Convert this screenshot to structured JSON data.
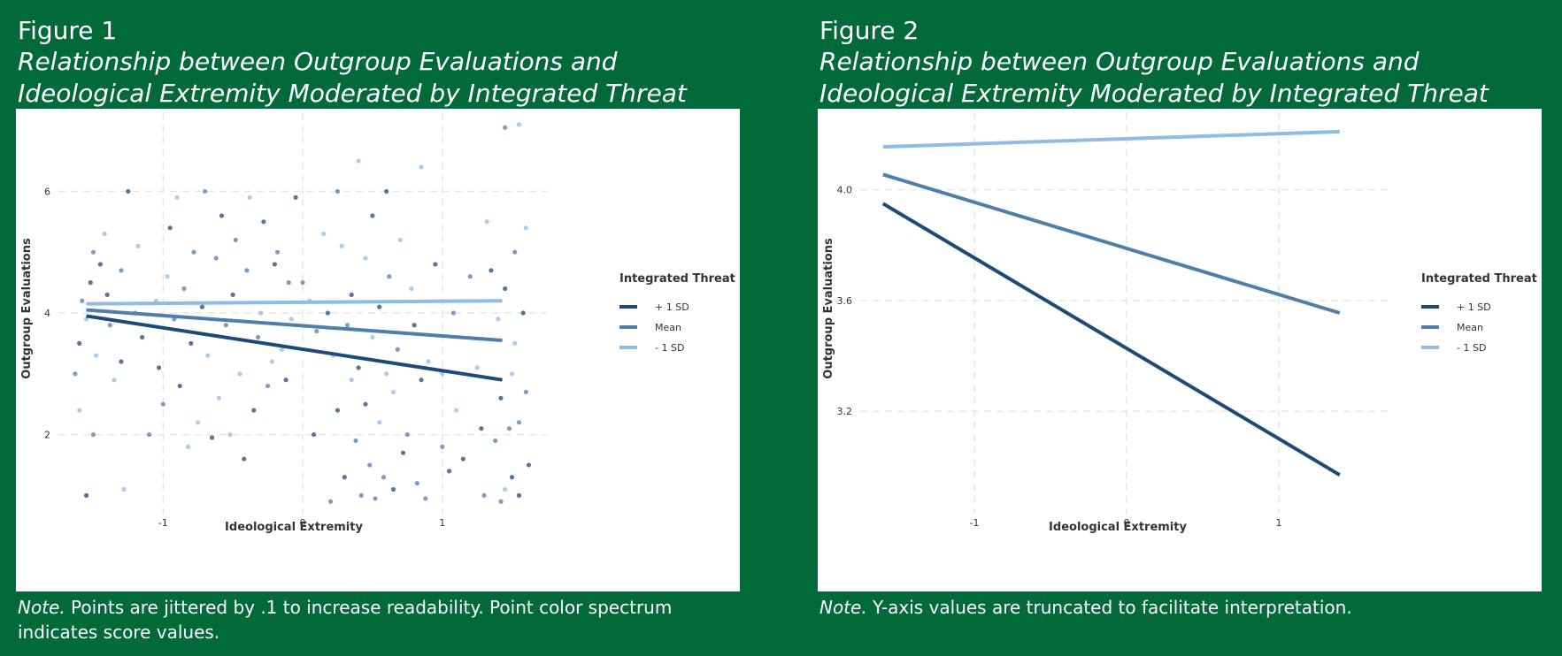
{
  "figures": [
    {
      "label": "Figure 1",
      "title_line1": "Relationship between Outgroup Evaluations and",
      "title_line2": "Ideological Extremity Moderated by Integrated Threat",
      "note_label": "Note.",
      "note_text": " Points are jittered by .1 to increase readability. Point color spectrum indicates score values."
    },
    {
      "label": "Figure 2",
      "title_line1": "Relationship between Outgroup Evaluations and",
      "title_line2": "Ideological Extremity Moderated by Integrated Threat",
      "note_label": "Note.",
      "note_text": " Y-axis values are truncated to facilitate interpretation."
    }
  ],
  "colors": {
    "background": "#026a3a",
    "plus_1sd": "#1c4a7a",
    "mean": "#4f7ead",
    "minus_1sd": "#8fbbe4",
    "grid": "#e6e6e6",
    "text": "#333333"
  },
  "chart_data": [
    {
      "type": "scatter",
      "xlabel": "Ideological Extremity",
      "ylabel": "Outgroup Evaluations",
      "xlim": [
        -1.75,
        1.75
      ],
      "ylim": [
        0.7,
        7.3
      ],
      "xticks": [
        -1,
        0,
        1
      ],
      "xtick_labels": [
        "-1",
        "0",
        "1"
      ],
      "yticks": [
        2,
        4,
        6
      ],
      "ytick_labels": [
        "2",
        "4",
        "6"
      ],
      "grid": true,
      "legend": {
        "title": "Integrated Threat",
        "position": "right",
        "entries": [
          "+ 1 SD",
          "Mean",
          "- 1 SD"
        ]
      },
      "series": [
        {
          "name": "+ 1 SD",
          "x": [
            -1.55,
            1.43
          ],
          "y": [
            3.95,
            2.9
          ]
        },
        {
          "name": "Mean",
          "x": [
            -1.55,
            1.43
          ],
          "y": [
            4.05,
            3.55
          ]
        },
        {
          "name": "- 1 SD",
          "x": [
            -1.55,
            1.43
          ],
          "y": [
            4.15,
            4.2
          ]
        }
      ],
      "points": [
        [
          -1.6,
          3.5
        ],
        [
          -1.58,
          4.2
        ],
        [
          -1.55,
          3.9
        ],
        [
          -1.52,
          4.5
        ],
        [
          -1.5,
          2.0
        ],
        [
          -1.48,
          3.3
        ],
        [
          -1.45,
          4.8
        ],
        [
          -1.63,
          3.0
        ],
        [
          -1.6,
          2.4
        ],
        [
          -1.55,
          1.0
        ],
        [
          -1.5,
          5.0
        ],
        [
          -1.42,
          5.3
        ],
        [
          -1.4,
          4.3
        ],
        [
          -1.38,
          3.8
        ],
        [
          -1.35,
          2.9
        ],
        [
          -1.3,
          3.2
        ],
        [
          -1.3,
          4.7
        ],
        [
          -1.28,
          1.1
        ],
        [
          -1.25,
          6.0
        ],
        [
          -1.2,
          4.0
        ],
        [
          -1.18,
          5.1
        ],
        [
          -1.15,
          3.6
        ],
        [
          -1.1,
          2.0
        ],
        [
          -1.05,
          4.2
        ],
        [
          -1.03,
          3.1
        ],
        [
          -1.0,
          2.5
        ],
        [
          -0.97,
          4.6
        ],
        [
          -0.95,
          5.4
        ],
        [
          -0.92,
          3.9
        ],
        [
          -0.9,
          5.9
        ],
        [
          -0.88,
          2.8
        ],
        [
          -0.85,
          4.4
        ],
        [
          -0.82,
          1.8
        ],
        [
          -0.8,
          3.5
        ],
        [
          -0.78,
          5.0
        ],
        [
          -0.75,
          2.2
        ],
        [
          -0.72,
          4.1
        ],
        [
          -0.7,
          6.0
        ],
        [
          -0.68,
          3.3
        ],
        [
          -0.65,
          1.95
        ],
        [
          -0.62,
          4.9
        ],
        [
          -0.6,
          2.6
        ],
        [
          -0.58,
          5.6
        ],
        [
          -0.55,
          3.8
        ],
        [
          -0.52,
          2.0
        ],
        [
          -0.5,
          4.3
        ],
        [
          -0.48,
          5.2
        ],
        [
          -0.45,
          3.0
        ],
        [
          -0.42,
          1.6
        ],
        [
          -0.4,
          4.7
        ],
        [
          -0.38,
          5.9
        ],
        [
          -0.35,
          2.4
        ],
        [
          -0.32,
          3.6
        ],
        [
          -0.3,
          4.0
        ],
        [
          -0.28,
          5.5
        ],
        [
          -0.25,
          2.8
        ],
        [
          -0.22,
          3.2
        ],
        [
          -0.2,
          4.8
        ],
        [
          -0.18,
          5.0
        ],
        [
          -0.15,
          3.4
        ],
        [
          -0.12,
          2.9
        ],
        [
          -0.1,
          4.5
        ],
        [
          -0.08,
          3.9
        ],
        [
          -0.05,
          5.9
        ],
        [
          0.0,
          4.5
        ],
        [
          0.05,
          4.2
        ],
        [
          0.08,
          2.0
        ],
        [
          0.1,
          3.7
        ],
        [
          0.15,
          5.3
        ],
        [
          0.18,
          4.0
        ],
        [
          0.2,
          0.9
        ],
        [
          0.22,
          3.3
        ],
        [
          0.25,
          2.4
        ],
        [
          0.25,
          6.0
        ],
        [
          0.28,
          5.1
        ],
        [
          0.3,
          1.3
        ],
        [
          0.32,
          3.8
        ],
        [
          0.35,
          2.9
        ],
        [
          0.35,
          4.3
        ],
        [
          0.38,
          1.9
        ],
        [
          0.4,
          6.5
        ],
        [
          0.4,
          3.1
        ],
        [
          0.42,
          1.0
        ],
        [
          0.45,
          4.9
        ],
        [
          0.45,
          2.5
        ],
        [
          0.48,
          1.5
        ],
        [
          0.5,
          3.6
        ],
        [
          0.5,
          5.6
        ],
        [
          0.52,
          0.95
        ],
        [
          0.55,
          2.2
        ],
        [
          0.55,
          4.1
        ],
        [
          0.58,
          1.3
        ],
        [
          0.6,
          3.0
        ],
        [
          0.6,
          6.0
        ],
        [
          0.62,
          4.6
        ],
        [
          0.65,
          2.7
        ],
        [
          0.65,
          1.1
        ],
        [
          0.68,
          3.4
        ],
        [
          0.7,
          5.2
        ],
        [
          0.72,
          1.7
        ],
        [
          0.75,
          2.0
        ],
        [
          0.78,
          4.4
        ],
        [
          0.8,
          3.8
        ],
        [
          0.82,
          1.2
        ],
        [
          0.85,
          6.4
        ],
        [
          0.85,
          2.9
        ],
        [
          0.88,
          0.95
        ],
        [
          0.9,
          3.2
        ],
        [
          0.95,
          4.8
        ],
        [
          1.0,
          1.8
        ],
        [
          1.0,
          3.0
        ],
        [
          1.05,
          1.4
        ],
        [
          1.08,
          4.0
        ],
        [
          1.1,
          2.4
        ],
        [
          1.15,
          1.6
        ],
        [
          1.2,
          4.6
        ],
        [
          1.25,
          3.1
        ],
        [
          1.28,
          2.1
        ],
        [
          1.3,
          1.0
        ],
        [
          1.32,
          5.5
        ],
        [
          1.35,
          4.7
        ],
        [
          1.38,
          1.9
        ],
        [
          1.4,
          3.9
        ],
        [
          1.42,
          2.6
        ],
        [
          1.42,
          0.9
        ],
        [
          1.45,
          1.1
        ],
        [
          1.45,
          4.4
        ],
        [
          1.48,
          2.1
        ],
        [
          1.5,
          3.0
        ],
        [
          1.5,
          1.3
        ],
        [
          1.52,
          5.0
        ],
        [
          1.52,
          3.5
        ],
        [
          1.55,
          1.0
        ],
        [
          1.55,
          2.2
        ],
        [
          1.55,
          7.1
        ],
        [
          1.58,
          4.0
        ],
        [
          1.6,
          2.7
        ],
        [
          1.6,
          5.4
        ],
        [
          1.62,
          1.5
        ],
        [
          1.45,
          7.05
        ]
      ]
    },
    {
      "type": "line",
      "xlabel": "Ideological Extremity",
      "ylabel": "Outgroup Evaluations",
      "xlim": [
        -1.75,
        1.75
      ],
      "ylim": [
        2.83,
        4.28
      ],
      "xticks": [
        -1,
        0,
        1
      ],
      "xtick_labels": [
        "-1",
        "0",
        "1"
      ],
      "yticks": [
        3.2,
        3.6,
        4.0
      ],
      "ytick_labels": [
        "3.2",
        "3.6",
        "4.0"
      ],
      "grid": true,
      "legend": {
        "title": "Integrated Threat",
        "position": "right",
        "entries": [
          "+ 1 SD",
          "Mean",
          "- 1 SD"
        ]
      },
      "series": [
        {
          "name": "+ 1 SD",
          "x": [
            -1.6,
            1.4
          ],
          "y": [
            3.95,
            2.97
          ]
        },
        {
          "name": "Mean",
          "x": [
            -1.6,
            1.4
          ],
          "y": [
            4.055,
            3.555
          ]
        },
        {
          "name": "- 1 SD",
          "x": [
            -1.6,
            1.4
          ],
          "y": [
            4.155,
            4.21
          ]
        }
      ]
    }
  ]
}
